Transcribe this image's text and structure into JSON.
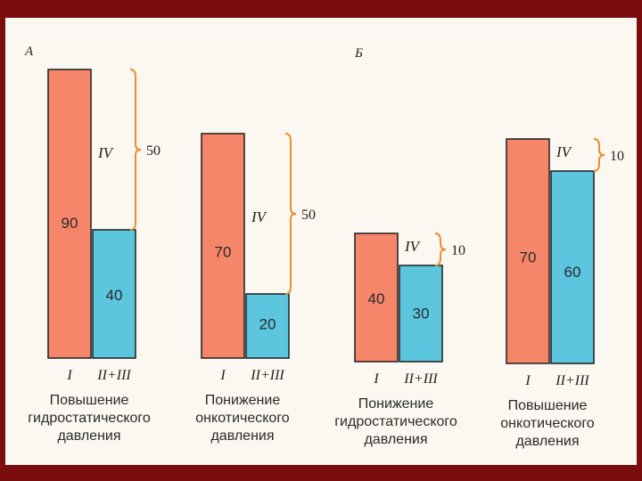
{
  "colors": {
    "bar_primary": "#f6866a",
    "bar_secondary": "#5bc6de",
    "bar_edge": "#1d1d1d",
    "brace": "#e9902a",
    "background": "#fbf8f1",
    "frame": "#7a0d0d"
  },
  "panels": [
    {
      "letter": "А"
    },
    {
      "letter": "Б"
    }
  ],
  "chart_data": [
    {
      "type": "bar",
      "panel": "А",
      "categories": [
        "I",
        "II+III"
      ],
      "values": [
        90,
        40
      ],
      "difference_label": "IV",
      "difference": 50,
      "caption": [
        "Повышение",
        "гидростатического",
        "давления"
      ]
    },
    {
      "type": "bar",
      "panel": "А",
      "categories": [
        "I",
        "II+III"
      ],
      "values": [
        70,
        20
      ],
      "difference_label": "IV",
      "difference": 50,
      "caption": [
        "Понижение",
        "онкотического",
        "давления"
      ]
    },
    {
      "type": "bar",
      "panel": "Б",
      "categories": [
        "I",
        "II+III"
      ],
      "values": [
        40,
        30
      ],
      "difference_label": "IV",
      "difference": 10,
      "caption": [
        "Понижение",
        "гидростатического",
        "давления"
      ]
    },
    {
      "type": "bar",
      "panel": "Б",
      "categories": [
        "I",
        "II+III"
      ],
      "values": [
        70,
        60
      ],
      "difference_label": "IV",
      "difference": 10,
      "caption": [
        "Повышение",
        "онкотического",
        "давления"
      ]
    }
  ]
}
